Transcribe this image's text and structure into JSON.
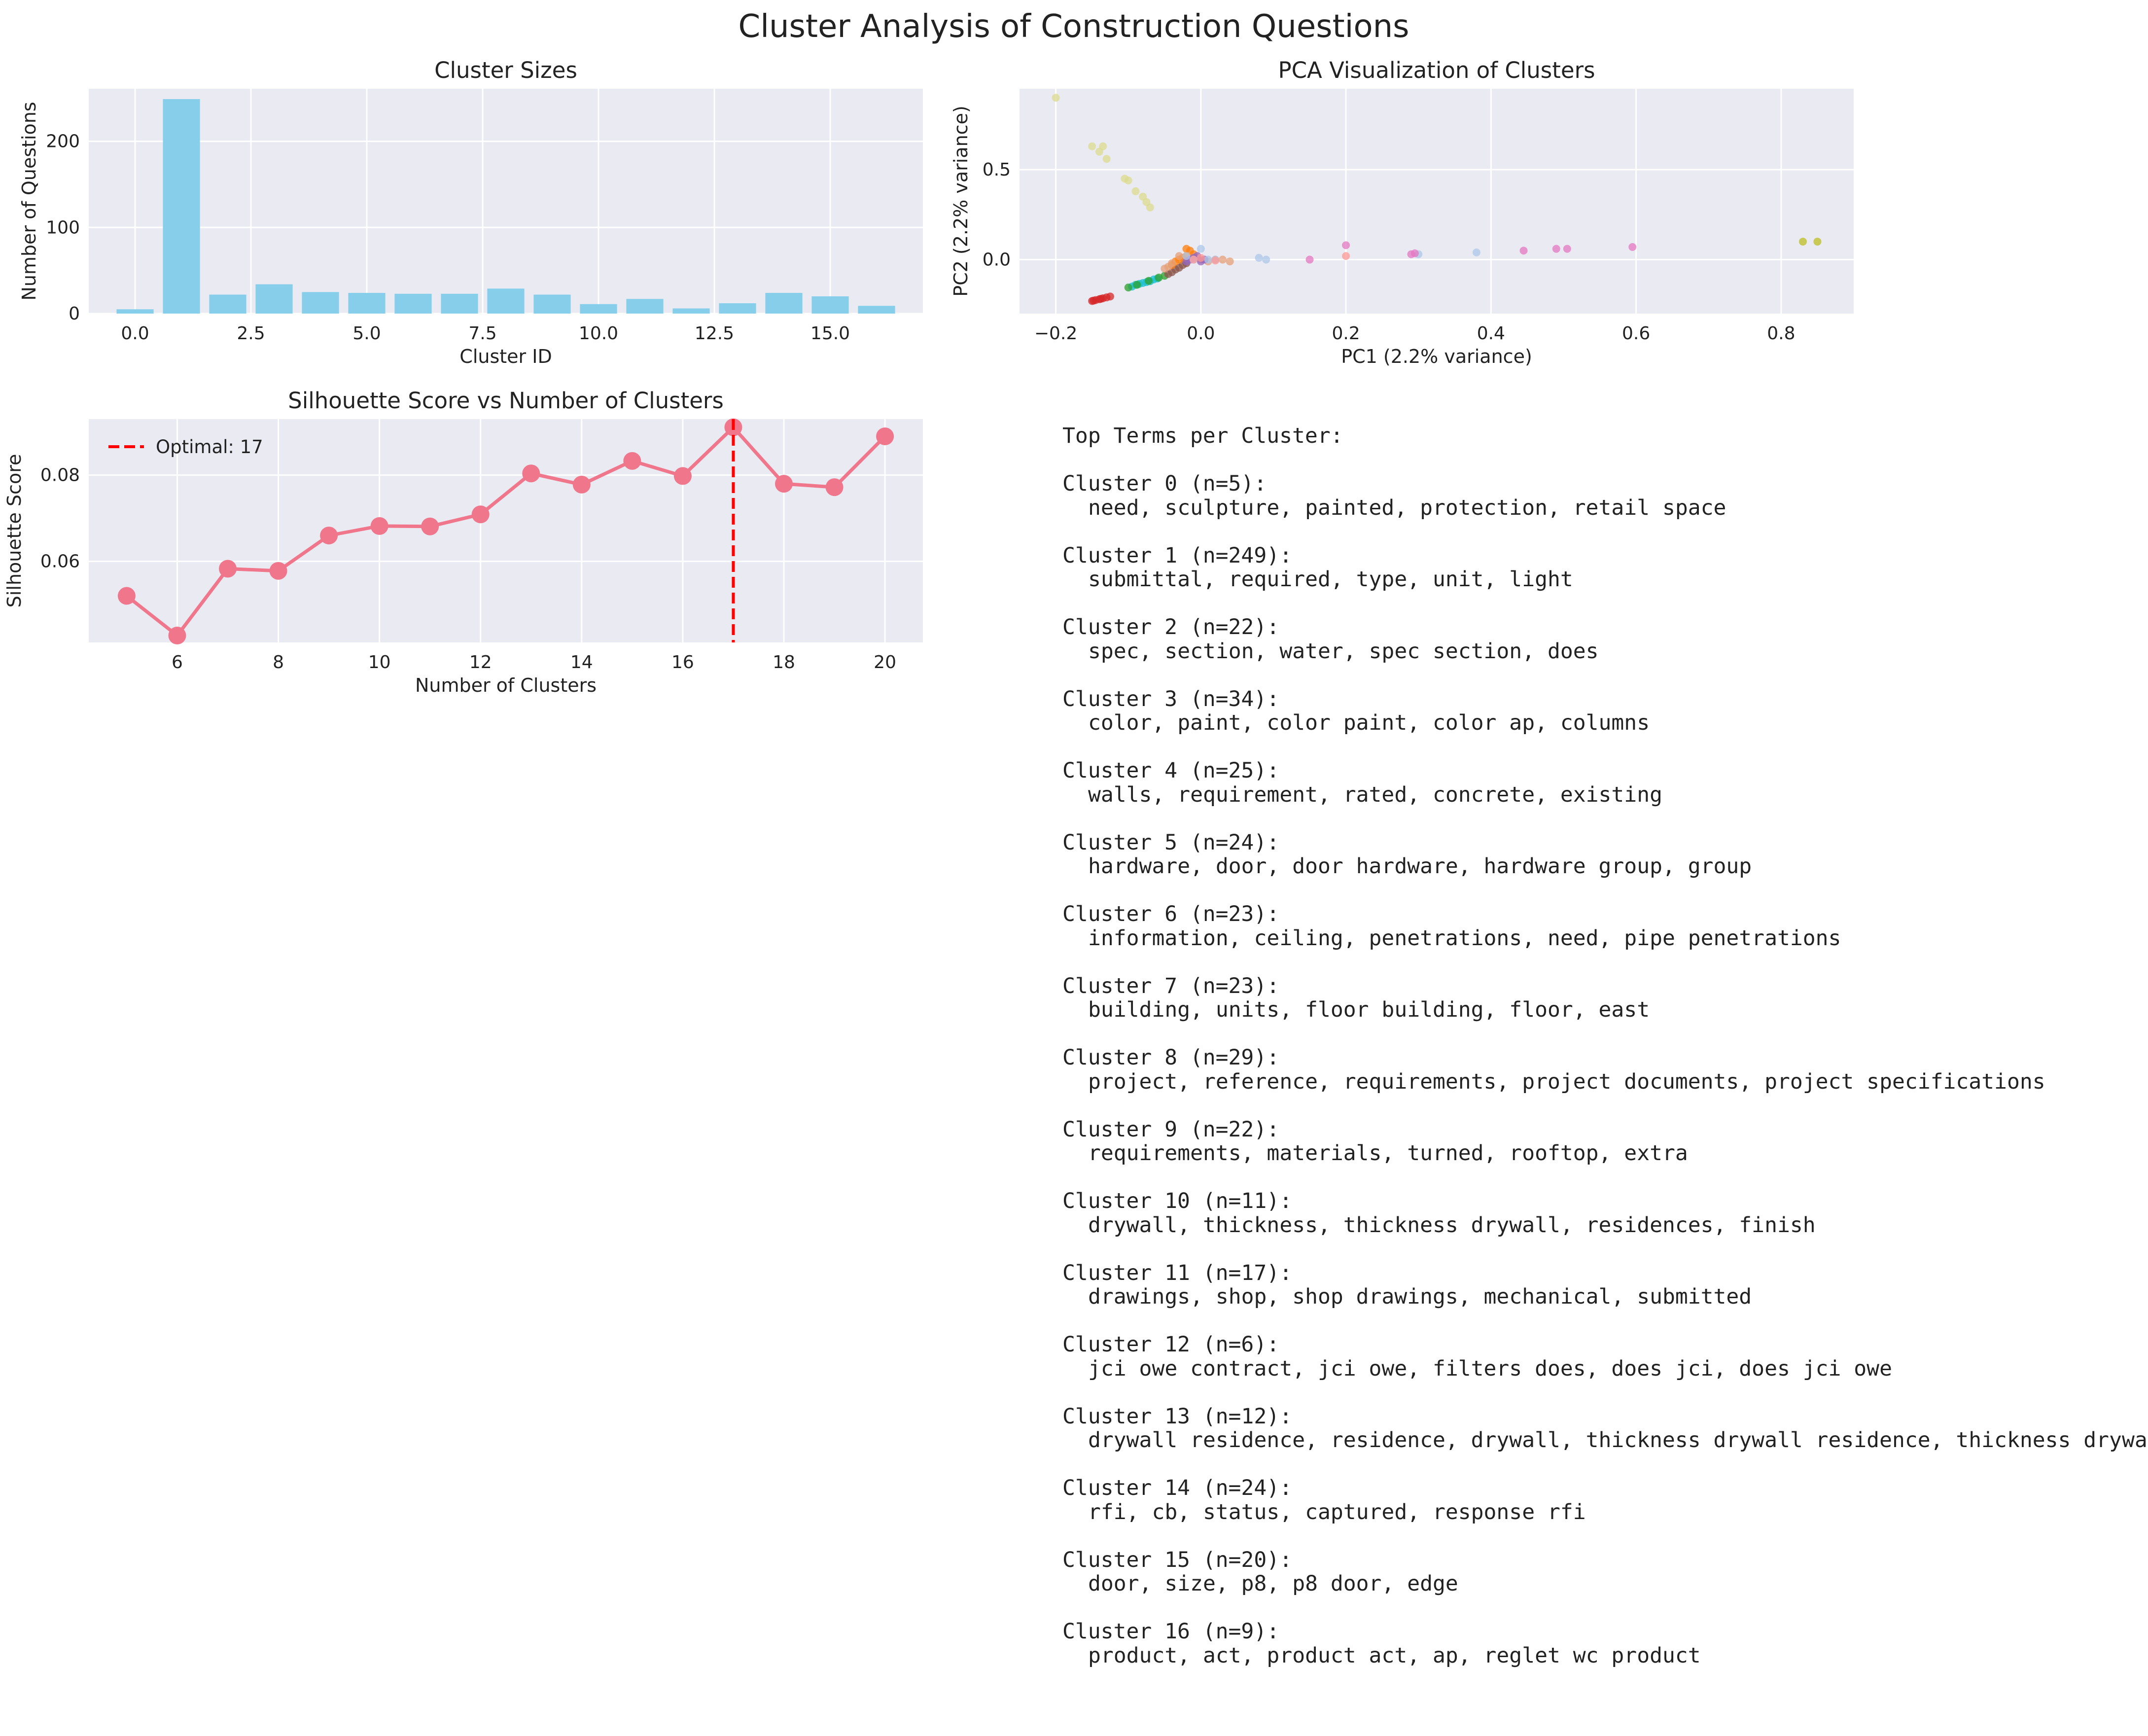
{
  "figure_title": "Cluster Analysis of Construction Questions",
  "chart_data": [
    {
      "type": "bar",
      "title": "Cluster Sizes",
      "xlabel": "Cluster ID",
      "ylabel": "Number of Questions",
      "categories": [
        0,
        1,
        2,
        3,
        4,
        5,
        6,
        7,
        8,
        9,
        10,
        11,
        12,
        13,
        14,
        15,
        16
      ],
      "values": [
        5,
        249,
        22,
        34,
        25,
        24,
        23,
        23,
        29,
        22,
        11,
        17,
        6,
        12,
        24,
        20,
        9
      ],
      "xlim": [
        -1,
        17
      ],
      "ylim": [
        0,
        261
      ],
      "xticks": [
        0.0,
        2.5,
        5.0,
        7.5,
        10.0,
        12.5,
        15.0
      ],
      "xtick_labels": [
        "0.0",
        "2.5",
        "5.0",
        "7.5",
        "10.0",
        "12.5",
        "15.0"
      ],
      "yticks": [
        0,
        100,
        200
      ],
      "color": "#87ceeb",
      "grid": true
    },
    {
      "type": "scatter",
      "title": "PCA Visualization of Clusters",
      "xlabel": "PC1 (2.2% variance)",
      "ylabel": "PC2 (2.2% variance)",
      "xlim": [
        -0.25,
        0.9
      ],
      "ylim": [
        -0.3,
        0.95
      ],
      "xticks": [
        -0.2,
        0.0,
        0.2,
        0.4,
        0.6,
        0.8
      ],
      "xtick_labels": [
        "−0.2",
        "0.0",
        "0.2",
        "0.4",
        "0.6",
        "0.8"
      ],
      "yticks": [
        0.0,
        0.5
      ],
      "ytick_labels": [
        "0.0",
        "0.5"
      ],
      "grid": true,
      "series": [
        {
          "color": "#d62728",
          "points": [
            [
              -0.15,
              -0.23
            ],
            [
              -0.145,
              -0.225
            ],
            [
              -0.14,
              -0.22
            ],
            [
              -0.135,
              -0.215
            ],
            [
              -0.13,
              -0.21
            ],
            [
              -0.125,
              -0.205
            ],
            [
              -0.148,
              -0.228
            ],
            [
              -0.138,
              -0.218
            ]
          ]
        },
        {
          "color": "#17becf",
          "points": [
            [
              -0.095,
              -0.15
            ],
            [
              -0.09,
              -0.14
            ],
            [
              -0.085,
              -0.135
            ],
            [
              -0.08,
              -0.13
            ],
            [
              -0.075,
              -0.125
            ],
            [
              -0.07,
              -0.12
            ],
            [
              -0.065,
              -0.11
            ],
            [
              -0.06,
              -0.105
            ]
          ]
        },
        {
          "color": "#2ca02c",
          "points": [
            [
              -0.1,
              -0.155
            ],
            [
              -0.088,
              -0.14
            ],
            [
              -0.072,
              -0.118
            ],
            [
              -0.058,
              -0.1
            ],
            [
              -0.05,
              -0.09
            ]
          ]
        },
        {
          "color": "#8c564b",
          "points": [
            [
              -0.045,
              -0.08
            ],
            [
              -0.04,
              -0.07
            ],
            [
              -0.035,
              -0.055
            ],
            [
              -0.03,
              -0.045
            ],
            [
              -0.025,
              -0.03
            ],
            [
              -0.02,
              -0.02
            ]
          ]
        },
        {
          "color": "#ff7f0e",
          "points": [
            [
              -0.04,
              -0.03
            ],
            [
              -0.035,
              -0.01
            ],
            [
              -0.03,
              0.0
            ],
            [
              -0.025,
              0.01
            ],
            [
              -0.02,
              0.02
            ],
            [
              -0.015,
              0.05
            ],
            [
              -0.02,
              0.06
            ],
            [
              -0.01,
              0.03
            ]
          ]
        },
        {
          "color": "#e6a07a",
          "points": [
            [
              -0.05,
              -0.05
            ],
            [
              -0.045,
              -0.04
            ],
            [
              -0.04,
              -0.02
            ],
            [
              -0.03,
              0.02
            ],
            [
              0.0,
              0.0
            ],
            [
              0.01,
              -0.01
            ],
            [
              0.02,
              0.0
            ],
            [
              0.03,
              0.0
            ],
            [
              0.04,
              -0.01
            ]
          ]
        },
        {
          "color": "#9467bd",
          "points": [
            [
              -0.02,
              -0.01
            ],
            [
              -0.015,
              0.0
            ],
            [
              -0.01,
              0.01
            ],
            [
              -0.005,
              0.02
            ],
            [
              0.0,
              -0.01
            ],
            [
              0.005,
              0.0
            ]
          ]
        },
        {
          "color": "#aec7e8",
          "points": [
            [
              -0.02,
              0.02
            ],
            [
              -0.01,
              0.0
            ],
            [
              0.0,
              0.06
            ],
            [
              0.01,
              0.0
            ],
            [
              0.02,
              0.0
            ],
            [
              0.08,
              0.01
            ],
            [
              0.09,
              0.0
            ],
            [
              0.3,
              0.03
            ],
            [
              0.38,
              0.04
            ]
          ]
        },
        {
          "color": "#e377c2",
          "points": [
            [
              0.15,
              0.0
            ],
            [
              0.2,
              0.08
            ],
            [
              0.29,
              0.03
            ],
            [
              0.295,
              0.035
            ],
            [
              0.445,
              0.05
            ],
            [
              0.49,
              0.06
            ],
            [
              0.505,
              0.06
            ],
            [
              0.595,
              0.07
            ]
          ]
        },
        {
          "color": "#ff9896",
          "points": [
            [
              -0.01,
              0.0
            ],
            [
              0.0,
              0.01
            ],
            [
              0.02,
              -0.005
            ],
            [
              0.2,
              0.02
            ]
          ]
        },
        {
          "color": "#dbdb8d",
          "points": [
            [
              -0.2,
              0.9
            ],
            [
              -0.15,
              0.63
            ],
            [
              -0.14,
              0.6
            ],
            [
              -0.135,
              0.63
            ],
            [
              -0.13,
              0.56
            ],
            [
              -0.105,
              0.45
            ],
            [
              -0.1,
              0.44
            ],
            [
              -0.09,
              0.38
            ],
            [
              -0.08,
              0.35
            ],
            [
              -0.075,
              0.32
            ],
            [
              -0.07,
              0.29
            ]
          ]
        },
        {
          "color": "#bcbd22",
          "points": [
            [
              0.83,
              0.1
            ],
            [
              0.85,
              0.1
            ]
          ]
        }
      ]
    },
    {
      "type": "line",
      "title": "Silhouette Score vs Number of Clusters",
      "xlabel": "Number of Clusters",
      "ylabel": "Silhouette Score",
      "x": [
        5,
        6,
        7,
        8,
        9,
        10,
        11,
        12,
        13,
        14,
        15,
        16,
        17,
        18,
        19,
        20
      ],
      "y": [
        0.052,
        0.0428,
        0.0583,
        0.0578,
        0.066,
        0.0682,
        0.0681,
        0.0709,
        0.0804,
        0.0778,
        0.0833,
        0.0798,
        0.0911,
        0.078,
        0.0772,
        0.089
      ],
      "xlim": [
        4.25,
        20.75
      ],
      "ylim": [
        0.0412,
        0.093
      ],
      "xticks": [
        6,
        8,
        10,
        12,
        14,
        16,
        18,
        20
      ],
      "yticks": [
        0.06,
        0.08
      ],
      "ytick_labels": [
        "0.06",
        "0.08"
      ],
      "color": "#f0768b",
      "vline": {
        "x": 17,
        "color": "#ff0000",
        "label": "Optimal: 17"
      },
      "legend": "top-left",
      "grid": true
    }
  ],
  "terms_panel": {
    "heading": "Top Terms per Cluster:",
    "clusters": [
      {
        "header": "Cluster 0 (n=5):",
        "terms": "need, sculpture, painted, protection, retail space"
      },
      {
        "header": "Cluster 1 (n=249):",
        "terms": "submittal, required, type, unit, light"
      },
      {
        "header": "Cluster 2 (n=22):",
        "terms": "spec, section, water, spec section, does"
      },
      {
        "header": "Cluster 3 (n=34):",
        "terms": "color, paint, color paint, color ap, columns"
      },
      {
        "header": "Cluster 4 (n=25):",
        "terms": "walls, requirement, rated, concrete, existing"
      },
      {
        "header": "Cluster 5 (n=24):",
        "terms": "hardware, door, door hardware, hardware group, group"
      },
      {
        "header": "Cluster 6 (n=23):",
        "terms": "information, ceiling, penetrations, need, pipe penetrations"
      },
      {
        "header": "Cluster 7 (n=23):",
        "terms": "building, units, floor building, floor, east"
      },
      {
        "header": "Cluster 8 (n=29):",
        "terms": "project, reference, requirements, project documents, project specifications"
      },
      {
        "header": "Cluster 9 (n=22):",
        "terms": "requirements, materials, turned, rooftop, extra"
      },
      {
        "header": "Cluster 10 (n=11):",
        "terms": "drywall, thickness, thickness drywall, residences, finish"
      },
      {
        "header": "Cluster 11 (n=17):",
        "terms": "drawings, shop, shop drawings, mechanical, submitted"
      },
      {
        "header": "Cluster 12 (n=6):",
        "terms": "jci owe contract, jci owe, filters does, does jci, does jci owe"
      },
      {
        "header": "Cluster 13 (n=12):",
        "terms": "drywall residence, residence, drywall, thickness drywall residence, thickness drywall"
      },
      {
        "header": "Cluster 14 (n=24):",
        "terms": "rfi, cb, status, captured, response rfi"
      },
      {
        "header": "Cluster 15 (n=20):",
        "terms": "door, size, p8, p8 door, edge"
      },
      {
        "header": "Cluster 16 (n=9):",
        "terms": "product, act, product act, ap, reglet wc product"
      }
    ]
  }
}
